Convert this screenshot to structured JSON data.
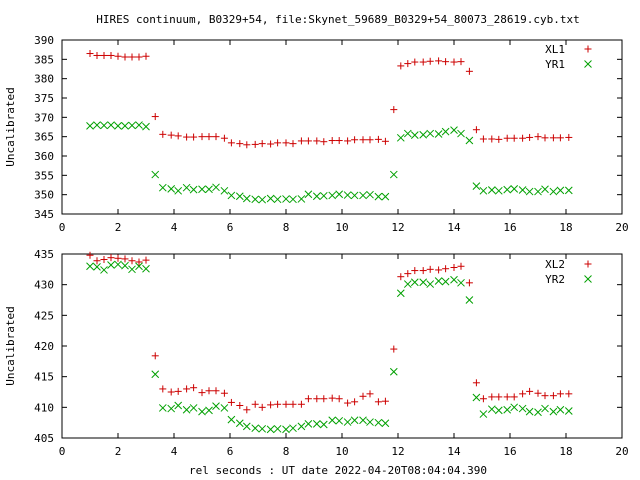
{
  "figure": {
    "title": "HIRES continuum, B0329+54, file:Skynet_59689_B0329+54_80073_28619.cyb.txt",
    "xlabel": "rel seconds : UT date 2022-04-20T08:04:04.390"
  },
  "chart_data": [
    {
      "type": "scatter",
      "ylabel": "Uncalibrated",
      "xlim": [
        0,
        20
      ],
      "ylim": [
        345,
        390
      ],
      "xticks": [
        0,
        2,
        4,
        6,
        8,
        10,
        12,
        14,
        16,
        18,
        20
      ],
      "yticks": [
        345,
        350,
        355,
        360,
        365,
        370,
        375,
        380,
        385,
        390
      ],
      "grid": false,
      "legend_position": "top-right",
      "x": [
        1.0,
        1.25,
        1.5,
        1.75,
        2.0,
        2.25,
        2.5,
        2.75,
        3.0,
        3.33,
        3.6,
        3.9,
        4.15,
        4.45,
        4.7,
        5.0,
        5.25,
        5.5,
        5.8,
        6.05,
        6.35,
        6.6,
        6.9,
        7.15,
        7.45,
        7.7,
        8.0,
        8.25,
        8.55,
        8.8,
        9.1,
        9.35,
        9.65,
        9.9,
        10.2,
        10.45,
        10.75,
        11.0,
        11.3,
        11.55,
        11.85,
        12.1,
        12.35,
        12.6,
        12.9,
        13.15,
        13.45,
        13.7,
        14.0,
        14.25,
        14.55,
        14.8,
        15.05,
        15.35,
        15.6,
        15.9,
        16.15,
        16.45,
        16.7,
        17.0,
        17.25,
        17.55,
        17.8,
        18.1
      ],
      "series": [
        {
          "name": "XL1",
          "color": "#cc0000",
          "marker": "plus",
          "values": [
            386.5,
            386.0,
            386.0,
            386.0,
            385.8,
            385.6,
            385.6,
            385.6,
            385.8,
            370.2,
            365.6,
            365.4,
            365.2,
            364.9,
            364.9,
            365.0,
            365.0,
            365.0,
            364.6,
            363.4,
            363.2,
            362.9,
            363.0,
            363.2,
            363.1,
            363.4,
            363.4,
            363.2,
            363.9,
            363.9,
            363.9,
            363.7,
            364.0,
            364.0,
            363.9,
            364.2,
            364.2,
            364.2,
            364.3,
            363.8,
            372.0,
            383.3,
            383.9,
            384.3,
            384.3,
            384.5,
            384.6,
            384.4,
            384.3,
            384.4,
            381.9,
            366.8,
            364.4,
            364.4,
            364.3,
            364.6,
            364.6,
            364.6,
            364.8,
            365.0,
            364.7,
            364.7,
            364.7,
            364.8
          ],
          "x_override": [
            1.0,
            1.25,
            1.5,
            1.75,
            2.0,
            2.25,
            2.5,
            2.75,
            3.1,
            3.33,
            3.6,
            3.9,
            4.15,
            4.45,
            4.7,
            5.0,
            5.25,
            5.5,
            5.8,
            6.05,
            6.35,
            6.6,
            6.9,
            7.15,
            7.45,
            7.7,
            8.0,
            8.25,
            8.55,
            8.8,
            9.1,
            9.35,
            9.65,
            9.9,
            10.2,
            10.45,
            10.75,
            11.0,
            11.3,
            11.55,
            12.05,
            12.35,
            12.6,
            12.9,
            13.15,
            13.45,
            13.7,
            14.0,
            14.25,
            14.55,
            14.8,
            15.1,
            15.35,
            15.6,
            15.9,
            16.15,
            16.45,
            16.7,
            17.0,
            17.25,
            17.55,
            17.8,
            18.1,
            18.1
          ]
        },
        {
          "name": "YR1",
          "color": "#00a000",
          "marker": "cross",
          "values": [
            367.8,
            368.0,
            367.9,
            368.0,
            367.8,
            367.8,
            367.9,
            368.0,
            367.6,
            355.2,
            351.8,
            351.5,
            351.0,
            351.8,
            351.3,
            351.4,
            351.4,
            351.9,
            351.0,
            349.8,
            349.6,
            349.0,
            348.8,
            348.7,
            349.0,
            348.8,
            348.9,
            348.8,
            348.9,
            350.1,
            349.6,
            349.7,
            349.8,
            350.1,
            349.9,
            349.8,
            349.8,
            350.0,
            349.5,
            349.5,
            355.2,
            364.7,
            365.8,
            365.4,
            365.5,
            365.8,
            365.7,
            366.3,
            366.7,
            365.8,
            364.0,
            352.2,
            351.0,
            351.2,
            351.0,
            351.3,
            351.5,
            351.2,
            350.8,
            350.8,
            351.4,
            350.8,
            351.1,
            351.1
          ]
        }
      ]
    },
    {
      "type": "scatter",
      "ylabel": "Uncalibrated",
      "xlim": [
        0,
        20
      ],
      "ylim": [
        405,
        435
      ],
      "xticks": [
        0,
        2,
        4,
        6,
        8,
        10,
        12,
        14,
        16,
        18,
        20
      ],
      "yticks": [
        405,
        410,
        415,
        420,
        425,
        430,
        435
      ],
      "grid": false,
      "legend_position": "top-right",
      "series": [
        {
          "name": "XL2",
          "color": "#cc0000",
          "marker": "plus",
          "values": [
            434.8,
            433.9,
            434.1,
            434.4,
            434.3,
            434.2,
            433.9,
            433.7,
            434.0,
            418.4,
            413.0,
            412.5,
            412.6,
            413.0,
            413.2,
            412.4,
            412.7,
            412.7,
            412.3,
            410.8,
            410.3,
            409.6,
            410.5,
            410.0,
            410.4,
            410.5,
            410.5,
            410.5,
            410.5,
            411.4,
            411.4,
            411.4,
            411.5,
            411.4,
            410.7,
            410.9,
            411.8,
            412.2,
            410.9,
            411.0,
            419.5,
            431.3,
            431.8,
            432.3,
            432.3,
            432.5,
            432.4,
            432.6,
            432.8,
            433.0,
            430.3,
            414.0,
            411.4,
            411.7,
            411.7,
            411.7,
            411.7,
            412.2,
            412.6,
            412.3,
            411.9,
            411.9,
            412.2,
            412.2
          ]
        },
        {
          "name": "YR2",
          "color": "#00a000",
          "marker": "cross",
          "values": [
            433.0,
            432.9,
            432.4,
            433.2,
            433.3,
            433.1,
            432.5,
            433.0,
            432.6,
            415.4,
            409.9,
            409.8,
            410.3,
            409.6,
            409.9,
            409.3,
            409.5,
            410.2,
            409.9,
            408.0,
            407.4,
            406.9,
            406.6,
            406.5,
            406.4,
            406.5,
            406.4,
            406.6,
            406.9,
            407.3,
            407.3,
            407.2,
            407.9,
            407.8,
            407.6,
            407.9,
            407.9,
            407.6,
            407.5,
            407.4,
            415.8,
            428.6,
            430.1,
            430.4,
            430.4,
            430.1,
            430.6,
            430.5,
            430.8,
            430.3,
            427.5,
            411.6,
            408.9,
            409.7,
            409.5,
            409.6,
            410.0,
            409.8,
            409.3,
            409.2,
            409.8,
            409.3,
            409.6,
            409.4
          ]
        }
      ]
    }
  ]
}
